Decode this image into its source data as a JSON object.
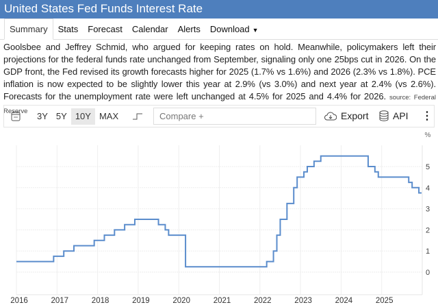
{
  "header": {
    "title": "United States Fed Funds Interest Rate"
  },
  "tabs": [
    {
      "label": "Summary",
      "active": true
    },
    {
      "label": "Stats"
    },
    {
      "label": "Forecast"
    },
    {
      "label": "Calendar"
    },
    {
      "label": "Alerts"
    },
    {
      "label": "Download"
    }
  ],
  "summary": {
    "text": "Goolsbee and Jeffrey Schmid, who argued for keeping rates on hold. Meanwhile, policymakers left their projections for the federal funds rate unchanged from September, signaling only one 25bps cut in 2026. On the GDP front, the Fed revised its growth forecasts higher for 2025 (1.7% vs 1.6%) and 2026 (2.3% vs 1.8%). PCE inflation is now expected to be slightly lower this year at 2.9% (vs 3.0%) and next year at 2.4% (vs 2.6%). Forecasts for the unemployment rate were left unchanged at 4.5% for 2025 and 4.4% for 2026.",
    "source": "source: Federal Reserve"
  },
  "toolbar": {
    "ranges": [
      "3Y",
      "5Y",
      "10Y",
      "MAX"
    ],
    "selected_range": "10Y",
    "compare_placeholder": "Compare +",
    "export_label": "Export",
    "api_label": "API"
  },
  "chart_data": {
    "type": "line",
    "step": true,
    "line_color": "#5a8ccc",
    "ylabel": "%",
    "ylim": [
      -1,
      6
    ],
    "yticks": [
      0,
      1,
      2,
      3,
      4,
      5
    ],
    "xticks": [
      "2016",
      "2017",
      "2018",
      "2019",
      "2020",
      "2021",
      "2022",
      "2023",
      "2024",
      "2025"
    ],
    "xlim": [
      "2016-01",
      "2025-12"
    ],
    "grid": true,
    "series": [
      {
        "points": [
          [
            "2016-01",
            0.5
          ],
          [
            "2016-12",
            0.75
          ],
          [
            "2017-03",
            1.0
          ],
          [
            "2017-06",
            1.25
          ],
          [
            "2017-12",
            1.5
          ],
          [
            "2018-03",
            1.75
          ],
          [
            "2018-06",
            2.0
          ],
          [
            "2018-09",
            2.25
          ],
          [
            "2018-12",
            2.5
          ],
          [
            "2019-07",
            2.25
          ],
          [
            "2019-09",
            2.0
          ],
          [
            "2019-10",
            1.75
          ],
          [
            "2020-03",
            1.25
          ],
          [
            "2020-03",
            0.25
          ],
          [
            "2022-03",
            0.5
          ],
          [
            "2022-05",
            1.0
          ],
          [
            "2022-06",
            1.75
          ],
          [
            "2022-07",
            2.5
          ],
          [
            "2022-09",
            3.25
          ],
          [
            "2022-11",
            4.0
          ],
          [
            "2022-12",
            4.5
          ],
          [
            "2023-02",
            4.75
          ],
          [
            "2023-03",
            5.0
          ],
          [
            "2023-05",
            5.25
          ],
          [
            "2023-07",
            5.5
          ],
          [
            "2024-09",
            5.0
          ],
          [
            "2024-11",
            4.75
          ],
          [
            "2024-12",
            4.5
          ],
          [
            "2025-09",
            4.25
          ],
          [
            "2025-10",
            4.0
          ],
          [
            "2025-12",
            3.75
          ]
        ]
      }
    ]
  }
}
